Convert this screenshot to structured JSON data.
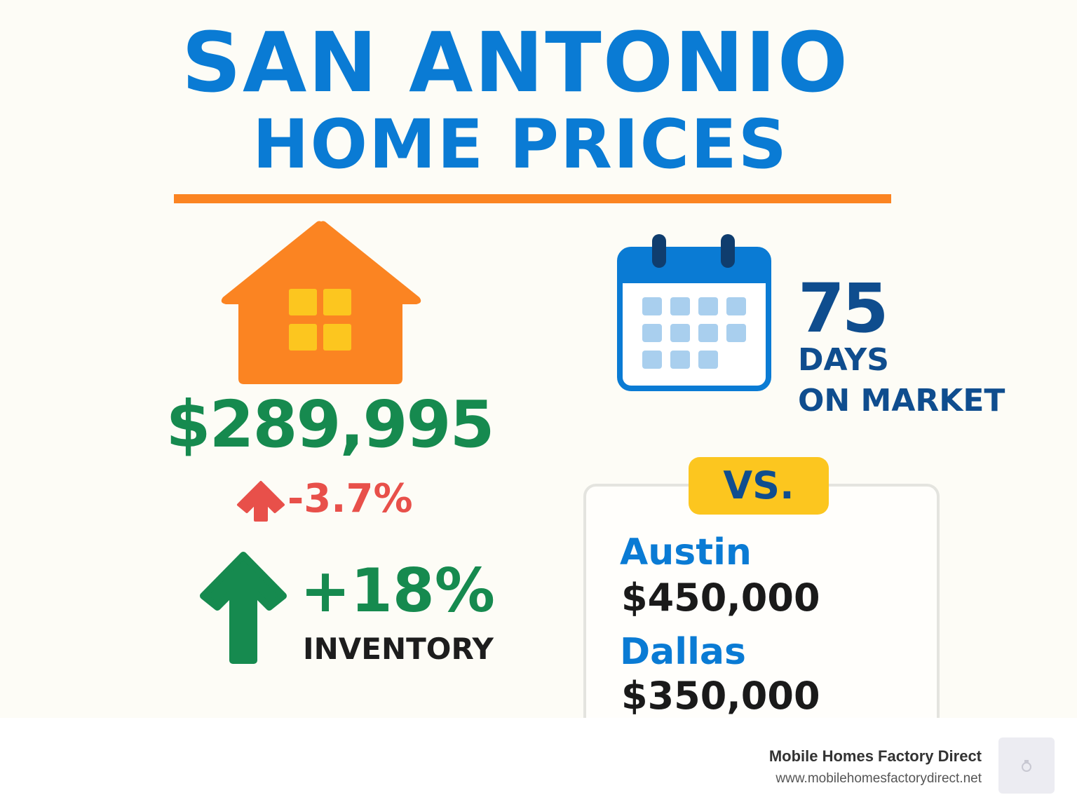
{
  "title": {
    "line1": "SAN ANTONIO",
    "line2": "HOME PRICES"
  },
  "home_price": {
    "value": "$289,995",
    "change": "-3.7%"
  },
  "inventory": {
    "change": "+18%",
    "label": "INVENTORY"
  },
  "days_on_market": {
    "value": "75",
    "label_line1": "DAYS",
    "label_line2": "ON MARKET"
  },
  "comparison": {
    "badge": "VS.",
    "cities": [
      {
        "name": "Austin",
        "price": "$450,000"
      },
      {
        "name": "Dallas",
        "price": "$350,000"
      }
    ]
  },
  "footer": {
    "brand": "Mobile Homes Factory Direct",
    "url": "www.mobilehomesfactorydirect.net"
  },
  "colors": {
    "title_blue": "#0a7bd4",
    "accent_orange": "#fb8422",
    "price_green": "#168a4f",
    "change_red": "#e8504a",
    "navy": "#0f4d8e",
    "badge_yellow": "#fcc61f"
  },
  "icons": [
    "house-icon",
    "up-arrow-red-icon",
    "up-arrow-green-icon",
    "calendar-icon",
    "logo-icon"
  ]
}
